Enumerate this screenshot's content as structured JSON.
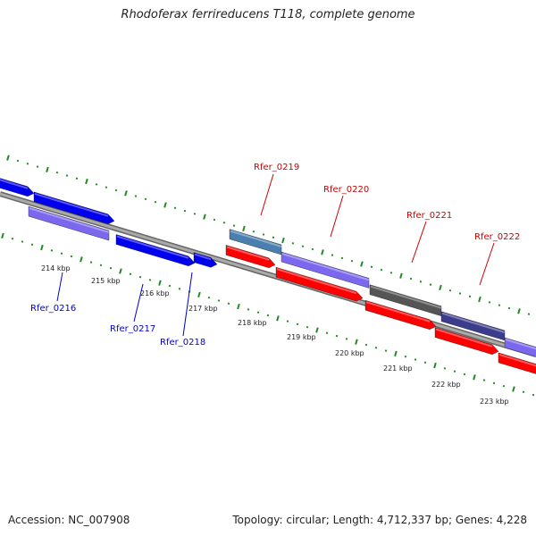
{
  "header": {
    "title": "Rhodoferax ferrireducens T118, complete genome"
  },
  "footer": {
    "accession": "Accession: NC_007908",
    "topology": "Topology: circular; Length: 4,712,337 bp; Genes: 4,228"
  },
  "colors": {
    "forward_gene": "#0000ee",
    "forward_gene_alt": "#7b68ee",
    "reverse_gene": "#ff0000",
    "dark_gene": "#555555",
    "navy_gene": "#3c3c8c",
    "steel_gene": "#4a7fb0",
    "backbone": "#999999",
    "ticks": "#228b22",
    "label_top": "#cc0000",
    "label_bottom": "#0000cc"
  },
  "scale": {
    "unit": "kbp",
    "labels": [
      "214 kbp",
      "215 kbp",
      "216 kbp",
      "217 kbp",
      "218 kbp",
      "219 kbp",
      "220 kbp",
      "221 kbp",
      "222 kbp",
      "223 kbp"
    ]
  },
  "gene_labels_bottom": [
    "Rfer_0216",
    "Rfer_0217",
    "Rfer_0218"
  ],
  "gene_labels_top": [
    "Rfer_0219",
    "Rfer_0220",
    "Rfer_0221",
    "Rfer_0222"
  ]
}
